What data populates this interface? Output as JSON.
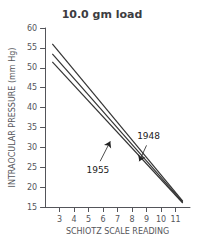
{
  "chart_data": {
    "type": "line",
    "title": "10.0 gm load",
    "xlabel": "SCHIOTZ SCALE READING",
    "ylabel": "INTRAOCULAR PRESSURE (mm Hg)",
    "xlim": [
      2,
      12
    ],
    "ylim": [
      15,
      60
    ],
    "xticks": [
      3,
      4,
      5,
      6,
      7,
      8,
      9,
      10,
      11
    ],
    "yticks": [
      15,
      20,
      25,
      30,
      35,
      40,
      45,
      50,
      55,
      60
    ],
    "grid": false,
    "series": [
      {
        "x": [
          2.5,
          11.5
        ],
        "values": [
          56.0,
          16.5
        ],
        "color": "#333333"
      },
      {
        "x": [
          2.5,
          11.5
        ],
        "values": [
          51.5,
          16.0
        ],
        "color": "#333333"
      },
      {
        "x": [
          2.5,
          11.5
        ],
        "values": [
          53.5,
          16.2
        ],
        "color": "#333333"
      }
    ],
    "annotations": [
      {
        "text": "1948",
        "x": 9.0,
        "y": 30.5,
        "arrow_x": 8.5,
        "arrow_y": 26.5
      },
      {
        "text": "1955",
        "x": 5.8,
        "y": 26.5,
        "arrow_x": 6.5,
        "arrow_y": 31.5
      }
    ]
  }
}
